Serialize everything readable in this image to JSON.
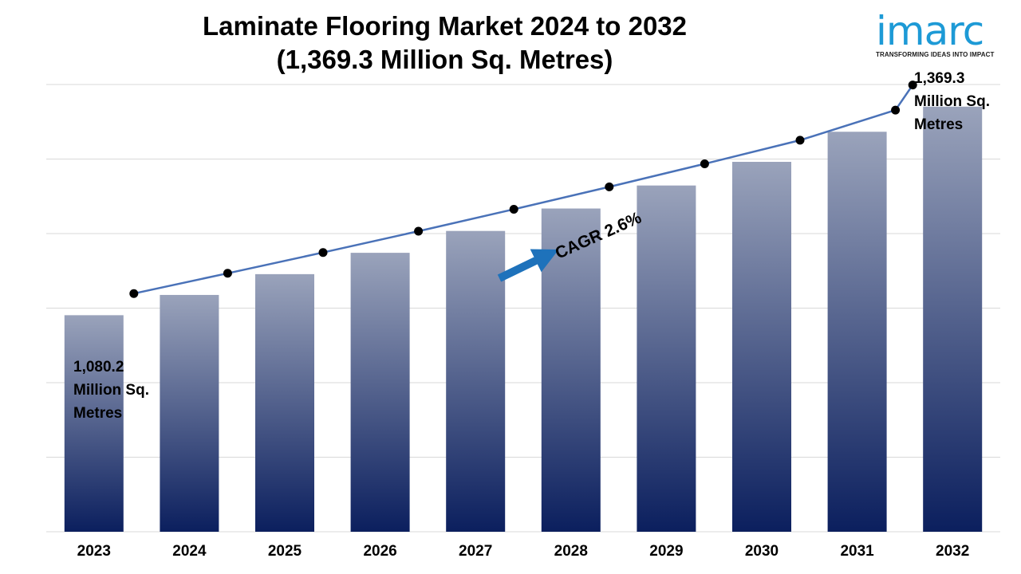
{
  "title_line1": "Laminate Flooring Market 2024 to 2032",
  "title_line2": "(1,369.3 Million Sq. Metres)",
  "logo": {
    "wordmark": "imarc",
    "tagline": "TRANSFORMING IDEAS INTO IMPACT",
    "color": "#1d9ad6"
  },
  "colors": {
    "bar_top": "#9aa3bb",
    "bar_bottom": "#0b1f5e",
    "line": "#4a72b8",
    "marker": "#000000",
    "arrow": "#1e72bb",
    "grid": "#d9d9d9"
  },
  "chart_data": {
    "type": "bar",
    "categories": [
      "2023",
      "2024",
      "2025",
      "2026",
      "2027",
      "2028",
      "2029",
      "2030",
      "2031",
      "2032"
    ],
    "values": [
      1080.2,
      1108.3,
      1137.1,
      1166.7,
      1197.0,
      1228.1,
      1260.0,
      1292.8,
      1334.5,
      1369.3
    ],
    "ylim": [
      780,
      1400
    ],
    "grid": true,
    "line_overlay": true,
    "start_label": [
      "1,080.2",
      "Million Sq.",
      "Metres"
    ],
    "end_label": [
      "1,369.3",
      "Million Sq.",
      "Metres"
    ],
    "cagr_label": "CAGR 2.6%"
  }
}
